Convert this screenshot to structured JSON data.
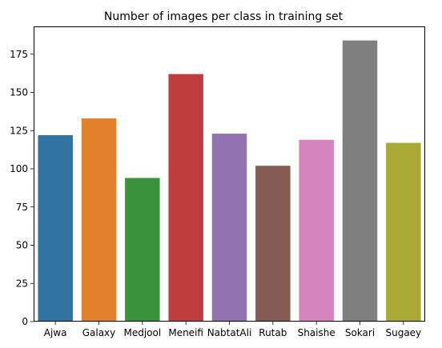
{
  "chart_data": {
    "type": "bar",
    "title": "Number of images per class in training set",
    "xlabel": "",
    "ylabel": "",
    "categories": [
      "Ajwa",
      "Galaxy",
      "Medjool",
      "Meneifi",
      "NabtatAli",
      "Rutab",
      "Shaishe",
      "Sokari",
      "Sugaey"
    ],
    "values": [
      122,
      133,
      94,
      162,
      123,
      102,
      119,
      184,
      117
    ],
    "colors": [
      "#3274a1",
      "#e1812c",
      "#3a923a",
      "#c03d3e",
      "#9372b2",
      "#845b53",
      "#d684bd",
      "#7f7f7f",
      "#a9aa35"
    ],
    "ylim": [
      0,
      193.2
    ],
    "yticks": [
      0,
      25,
      50,
      75,
      100,
      125,
      150,
      175
    ],
    "ytick_labels": [
      "0",
      "25",
      "50",
      "75",
      "100",
      "125",
      "150",
      "175"
    ],
    "grid": false,
    "legend": "none"
  }
}
